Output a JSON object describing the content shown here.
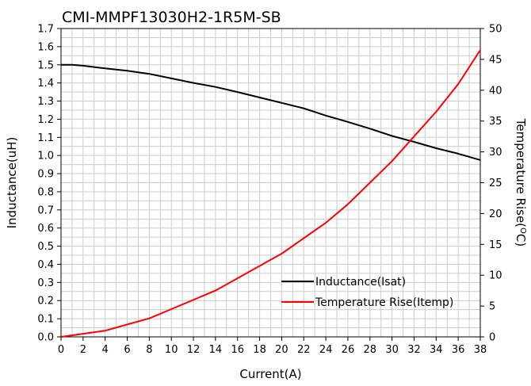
{
  "chart_data": {
    "type": "line",
    "title": "CMI-MMPF13030H2-1R5M-SB",
    "xlabel": "Current(A)",
    "ylabel": "Inductance(uH)",
    "y2label": "Temperature Rise(°C)",
    "y2label_parts": {
      "prefix": "Temperature Rise(",
      "sup": "O",
      "suffix": "C)"
    },
    "xlim": [
      0,
      38
    ],
    "ylim": [
      0,
      1.7
    ],
    "y2lim": [
      0,
      50
    ],
    "x_ticks": [
      "0",
      "2",
      "4",
      "6",
      "8",
      "10",
      "12",
      "14",
      "16",
      "18",
      "20",
      "22",
      "24",
      "26",
      "28",
      "30",
      "32",
      "34",
      "36",
      "38"
    ],
    "y_ticks": [
      "0.0",
      "0.1",
      "0.2",
      "0.3",
      "0.4",
      "0.5",
      "0.6",
      "0.7",
      "0.8",
      "0.9",
      "1.0",
      "1.1",
      "1.2",
      "1.3",
      "1.4",
      "1.5",
      "1.6",
      "1.7"
    ],
    "y2_ticks": [
      "0",
      "5",
      "10",
      "15",
      "20",
      "25",
      "30",
      "35",
      "40",
      "45",
      "50"
    ],
    "grid": true,
    "legend_position": "lower-right",
    "series": [
      {
        "name": "Inductance(Isat)",
        "axis": "left",
        "color": "#000000",
        "x": [
          0,
          1,
          2,
          4,
          6,
          8,
          10,
          12,
          14,
          16,
          18,
          20,
          22,
          24,
          26,
          28,
          30,
          32,
          34,
          36,
          38
        ],
        "y": [
          1.5,
          1.5,
          1.495,
          1.48,
          1.467,
          1.45,
          1.425,
          1.4,
          1.378,
          1.35,
          1.32,
          1.29,
          1.26,
          1.22,
          1.185,
          1.148,
          1.108,
          1.075,
          1.04,
          1.01,
          0.975
        ]
      },
      {
        "name": "Temperature Rise(Itemp)",
        "axis": "right",
        "color": "#ff0000",
        "x": [
          0,
          2,
          4,
          6,
          8,
          10,
          12,
          14,
          16,
          18,
          20,
          22,
          24,
          26,
          28,
          30,
          32,
          34,
          36,
          38
        ],
        "y": [
          0,
          0.5,
          1.0,
          2.0,
          3.0,
          4.5,
          6.0,
          7.5,
          9.5,
          11.5,
          13.5,
          16.0,
          18.5,
          21.5,
          25.0,
          28.5,
          32.5,
          36.5,
          41.0,
          46.5
        ]
      }
    ]
  }
}
